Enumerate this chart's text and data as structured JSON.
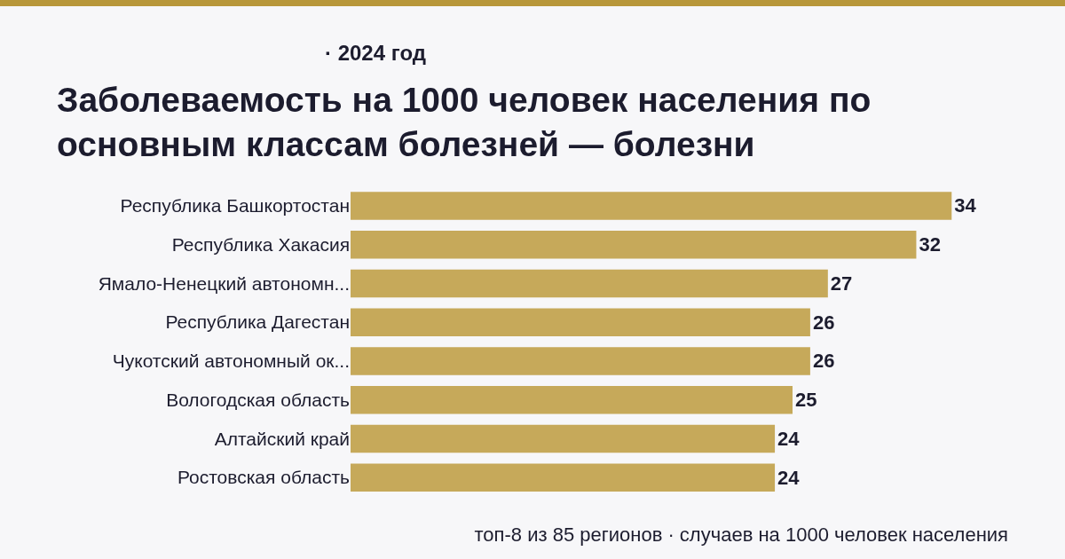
{
  "chart_data": {
    "type": "bar",
    "orientation": "horizontal",
    "title": "Заболеваемость на 1000 человек населения по основным классам болезней — болезни",
    "subtitle": "· 2024 год",
    "categories": [
      "Республика Башкортостан",
      "Республика Хакасия",
      "Ямало-Ненецкий автономн...",
      "Республика Дагестан",
      "Чукотский автономный ок...",
      "Вологодская область",
      "Алтайский край",
      "Ростовская область"
    ],
    "values": [
      34,
      32,
      27,
      26,
      26,
      25,
      24,
      24
    ],
    "color": "#c6a95a",
    "data_labels": true,
    "grid": false,
    "legend": false,
    "annotations": [
      "топ-8 из 85 регионов · случаев на 1000 человек населения"
    ]
  }
}
